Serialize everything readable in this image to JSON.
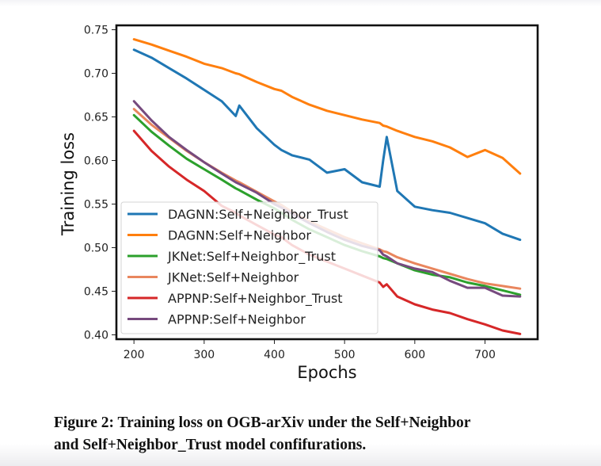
{
  "chart_data": {
    "type": "line",
    "title": "",
    "xlabel": "Epochs",
    "ylabel": "Training loss",
    "xlim": [
      175,
      775
    ],
    "ylim": [
      0.395,
      0.755
    ],
    "xticks": [
      200,
      300,
      400,
      500,
      600,
      700
    ],
    "xtick_labels": [
      "200",
      "300",
      "400",
      "500",
      "600",
      "700"
    ],
    "yticks": [
      0.4,
      0.45,
      0.5,
      0.55,
      0.6,
      0.65,
      0.7,
      0.75
    ],
    "ytick_labels": [
      "0.40",
      "0.45",
      "0.50",
      "0.55",
      "0.60",
      "0.65",
      "0.70",
      "0.75"
    ],
    "grid": false,
    "legend_position": "lower-left",
    "x": [
      200,
      225,
      250,
      275,
      300,
      325,
      345,
      350,
      375,
      400,
      410,
      425,
      450,
      475,
      500,
      525,
      550,
      555,
      560,
      575,
      600,
      625,
      650,
      675,
      700,
      725,
      750
    ],
    "series": [
      {
        "name": "DAGNN:Self+Neighbor_Trust",
        "color": "#1f77b4",
        "values": [
          0.727,
          0.718,
          0.706,
          0.694,
          0.681,
          0.668,
          0.651,
          0.663,
          0.637,
          0.618,
          0.612,
          0.606,
          0.601,
          0.586,
          0.59,
          0.575,
          0.57,
          0.6,
          0.627,
          0.565,
          0.547,
          0.543,
          0.54,
          0.534,
          0.528,
          0.516,
          0.509
        ]
      },
      {
        "name": "DAGNN:Self+Neighbor",
        "color": "#ff7f0e",
        "values": [
          0.739,
          0.733,
          0.726,
          0.719,
          0.711,
          0.706,
          0.7,
          0.699,
          0.69,
          0.682,
          0.68,
          0.673,
          0.664,
          0.657,
          0.652,
          0.647,
          0.643,
          0.64,
          0.639,
          0.634,
          0.627,
          0.622,
          0.615,
          0.604,
          0.612,
          0.603,
          0.585
        ]
      },
      {
        "name": "JKNet:Self+Neighbor_Trust",
        "color": "#2ca02c",
        "values": [
          0.652,
          0.633,
          0.617,
          0.602,
          0.59,
          0.578,
          0.568,
          0.566,
          0.555,
          0.545,
          0.54,
          0.532,
          0.521,
          0.512,
          0.503,
          0.496,
          0.49,
          0.488,
          0.487,
          0.482,
          0.474,
          0.469,
          0.466,
          0.46,
          0.456,
          0.451,
          0.446
        ]
      },
      {
        "name": "JKNet:Self+Neighbor",
        "color": "#e9865e",
        "values": [
          0.659,
          0.641,
          0.626,
          0.611,
          0.598,
          0.586,
          0.577,
          0.575,
          0.564,
          0.553,
          0.549,
          0.541,
          0.53,
          0.521,
          0.512,
          0.505,
          0.498,
          0.496,
          0.495,
          0.489,
          0.482,
          0.476,
          0.47,
          0.464,
          0.459,
          0.456,
          0.453
        ]
      },
      {
        "name": "APPNP:Self+Neighbor_Trust",
        "color": "#d62728",
        "values": [
          0.634,
          0.611,
          0.593,
          0.578,
          0.565,
          0.548,
          0.54,
          0.537,
          0.526,
          0.515,
          0.512,
          0.503,
          0.492,
          0.484,
          0.476,
          0.468,
          0.46,
          0.455,
          0.458,
          0.444,
          0.435,
          0.429,
          0.425,
          0.418,
          0.412,
          0.405,
          0.401
        ]
      },
      {
        "name": "APPNP:Self+Neighbor",
        "color": "#764a7e",
        "values": [
          0.668,
          0.646,
          0.627,
          0.612,
          0.598,
          0.585,
          0.575,
          0.573,
          0.563,
          0.55,
          0.546,
          0.539,
          0.528,
          0.518,
          0.509,
          0.502,
          0.497,
          0.492,
          0.49,
          0.482,
          0.476,
          0.472,
          0.462,
          0.454,
          0.454,
          0.445,
          0.444
        ]
      }
    ]
  },
  "figure": {
    "caption_line1": "Figure 2: Training loss on OGB-arXiv under the Self+Neighbor",
    "caption_line2": "and Self+Neighbor_Trust model confifurations."
  }
}
